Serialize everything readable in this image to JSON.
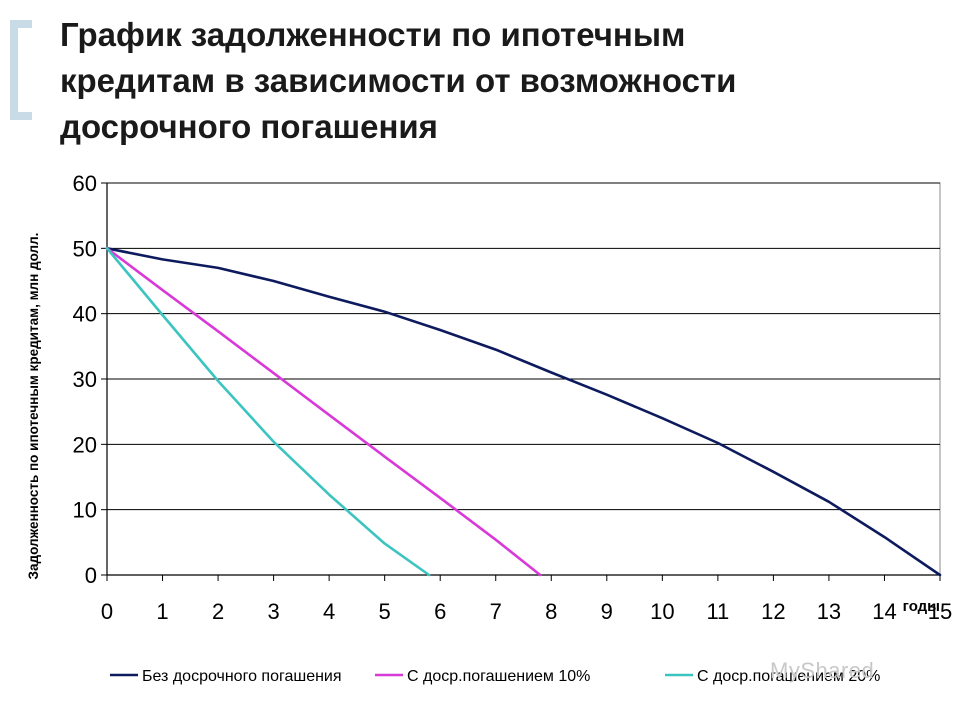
{
  "title_lines": [
    "График задолженности по ипотечным",
    "кредитам в зависимости от возможности",
    "досрочного погашения"
  ],
  "watermark": "MyShared",
  "colors": {
    "accent_bracket": "#c9dbe6",
    "grid": "#000000",
    "series": [
      "#0d1b5e",
      "#d83ad8",
      "#3cc4c0"
    ]
  },
  "chart_data": {
    "type": "line",
    "xlabel": "годы",
    "ylabel": "Задолженность по ипотечным кредитам, млн долл.",
    "x_ticks": [
      0,
      1,
      2,
      3,
      4,
      5,
      6,
      7,
      8,
      9,
      10,
      11,
      12,
      13,
      14,
      15
    ],
    "y_ticks": [
      0,
      10,
      20,
      30,
      40,
      50,
      60
    ],
    "xlim": [
      0,
      15
    ],
    "ylim": [
      0,
      60
    ],
    "grid": "horizontal",
    "legend_position": "bottom",
    "series": [
      {
        "name": "Без досрочного погашения",
        "x": [
          0,
          1,
          2,
          3,
          4,
          5,
          6,
          7,
          8,
          9,
          10,
          11,
          12,
          13,
          14,
          15
        ],
        "y": [
          50,
          48.3,
          47,
          45,
          42.6,
          40.3,
          37.5,
          34.5,
          31,
          27.6,
          24,
          20.2,
          15.8,
          11.2,
          5.8,
          0
        ]
      },
      {
        "name": "С доср.погашением 10%",
        "x": [
          0,
          1,
          2,
          3,
          4,
          5,
          6,
          7,
          7.8
        ],
        "y": [
          50,
          43.6,
          37.3,
          30.9,
          24.5,
          18.1,
          11.8,
          5.4,
          0
        ]
      },
      {
        "name": "С доср.погашением 20%",
        "x": [
          0,
          1,
          2,
          3,
          4,
          5,
          5.8
        ],
        "y": [
          50,
          39.8,
          29.7,
          20.4,
          12.3,
          4.8,
          0
        ]
      }
    ]
  }
}
